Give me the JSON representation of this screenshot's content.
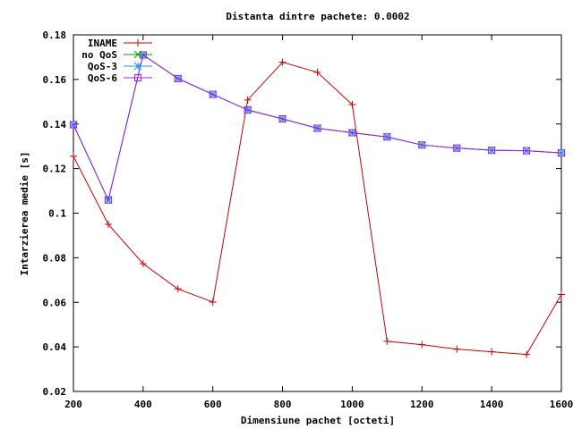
{
  "chart_data": {
    "type": "line",
    "title": "Distanta dintre pachete: 0.0002",
    "xlabel": "Dimensiune pachet [octeti]",
    "ylabel": "Intarzierea medie [s]",
    "xlim": [
      200,
      1600
    ],
    "ylim": [
      0.02,
      0.18
    ],
    "xticks": [
      200,
      400,
      600,
      800,
      1000,
      1200,
      1400,
      1600
    ],
    "xtick_labels": [
      "200",
      "400",
      "600",
      "800",
      "1000",
      "1200",
      "1400",
      "1600"
    ],
    "yticks": [
      0.02,
      0.04,
      0.06,
      0.08,
      0.1,
      0.12,
      0.14,
      0.16,
      0.18
    ],
    "ytick_labels": [
      "0.02",
      "0.04",
      "0.06",
      "0.08",
      "0.1",
      "0.12",
      "0.14",
      "0.16",
      "0.18"
    ],
    "grid": false,
    "legend_position": "top-left",
    "x": [
      200,
      300,
      400,
      500,
      600,
      700,
      800,
      900,
      1000,
      1100,
      1200,
      1300,
      1400,
      1500,
      1600
    ],
    "series": [
      {
        "name": "INAME",
        "color": "#cc0000",
        "marker": "plus",
        "values": [
          0.1255,
          0.095,
          0.0773,
          0.066,
          0.0601,
          0.1508,
          0.1677,
          0.1632,
          0.1487,
          0.0425,
          0.041,
          0.039,
          0.0378,
          0.0366,
          0.0635
        ]
      },
      {
        "name": "no QoS",
        "color": "#00a000",
        "marker": "cross",
        "values": [
          0.1397,
          0.1059,
          0.171,
          0.1604,
          0.1533,
          0.1463,
          0.1423,
          0.1381,
          0.1361,
          0.1342,
          0.1306,
          0.1292,
          0.1282,
          0.128,
          0.127
        ]
      },
      {
        "name": "QoS-3",
        "color": "#1e90ff",
        "marker": "star",
        "values": [
          0.1397,
          0.1059,
          0.171,
          0.1604,
          0.1533,
          0.1463,
          0.1423,
          0.1381,
          0.1361,
          0.1342,
          0.1306,
          0.1292,
          0.1282,
          0.128,
          0.127
        ]
      },
      {
        "name": "QoS-6",
        "color": "#a020f0",
        "marker": "square",
        "values": [
          0.1397,
          0.1059,
          0.171,
          0.1604,
          0.1533,
          0.1463,
          0.1423,
          0.1381,
          0.1361,
          0.1342,
          0.1306,
          0.1292,
          0.1282,
          0.128,
          0.127
        ]
      }
    ]
  }
}
